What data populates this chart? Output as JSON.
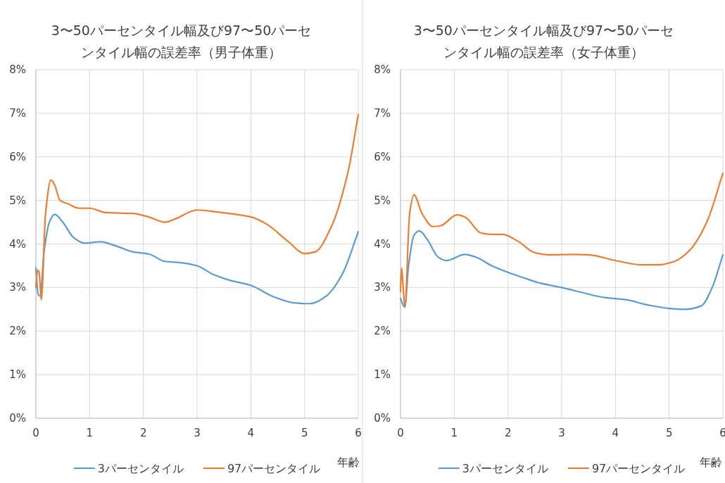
{
  "chart_data": [
    {
      "type": "line",
      "title": "3〜50パーセンタイル幅及び97〜50パーセンタイル幅の誤差率（男子体重）",
      "xlabel": "年齢",
      "xlim": [
        0,
        6
      ],
      "xticks": [
        0,
        1,
        2,
        3,
        4,
        5,
        6
      ],
      "ylim": [
        0,
        8
      ],
      "yticks": [
        {
          "value": 0,
          "label": "0%"
        },
        {
          "value": 1,
          "label": "1%"
        },
        {
          "value": 2,
          "label": "2%"
        },
        {
          "value": 3,
          "label": "3%"
        },
        {
          "value": 4,
          "label": "4%"
        },
        {
          "value": 5,
          "label": "5%"
        },
        {
          "value": 6,
          "label": "6%"
        },
        {
          "value": 7,
          "label": "7%"
        },
        {
          "value": 8,
          "label": "8%"
        }
      ],
      "grid": true,
      "legend": "bottom",
      "marker": "none",
      "line_style": "solid",
      "series": [
        {
          "name": "3パーセンタイル",
          "color": "#5b9bd5",
          "x": [
            0,
            0.04,
            0.08,
            0.15,
            0.25,
            0.35,
            0.5,
            0.7,
            0.9,
            1.2,
            1.5,
            1.8,
            2.1,
            2.4,
            2.7,
            3.0,
            3.3,
            3.6,
            4.0,
            4.4,
            4.8,
            5.1,
            5.4,
            5.7,
            6.0
          ],
          "values": [
            3.45,
            2.85,
            2.8,
            3.8,
            4.5,
            4.68,
            4.5,
            4.15,
            4.02,
            4.05,
            3.95,
            3.82,
            3.77,
            3.6,
            3.57,
            3.5,
            3.3,
            3.17,
            3.05,
            2.8,
            2.65,
            2.63,
            2.8,
            3.3,
            4.28
          ]
        },
        {
          "name": "97パーセンタイル",
          "color": "#ed7d31",
          "x": [
            0,
            0.03,
            0.06,
            0.1,
            0.18,
            0.28,
            0.35,
            0.45,
            0.6,
            0.8,
            1.0,
            1.3,
            1.8,
            2.1,
            2.4,
            2.6,
            3.0,
            3.4,
            4.0,
            4.3,
            4.7,
            5.0,
            5.2,
            5.5,
            5.8,
            6.0
          ],
          "values": [
            3.0,
            3.4,
            3.35,
            2.72,
            4.7,
            5.47,
            5.35,
            5.0,
            4.92,
            4.82,
            4.82,
            4.72,
            4.7,
            4.62,
            4.5,
            4.58,
            4.78,
            4.73,
            4.62,
            4.45,
            4.05,
            3.78,
            3.82,
            4.4,
            5.6,
            6.97
          ]
        }
      ]
    },
    {
      "type": "line",
      "title": "3〜50パーセンタイル幅及び97〜50パーセンタイル幅の誤差率（女子体重）",
      "xlabel": "年齢",
      "xlim": [
        0,
        6
      ],
      "xticks": [
        0,
        1,
        2,
        3,
        4,
        5,
        6
      ],
      "ylim": [
        0,
        8
      ],
      "yticks": [
        {
          "value": 0,
          "label": "0%"
        },
        {
          "value": 1,
          "label": "1%"
        },
        {
          "value": 2,
          "label": "2%"
        },
        {
          "value": 3,
          "label": "3%"
        },
        {
          "value": 4,
          "label": "4%"
        },
        {
          "value": 5,
          "label": "5%"
        },
        {
          "value": 6,
          "label": "6%"
        },
        {
          "value": 7,
          "label": "7%"
        },
        {
          "value": 8,
          "label": "8%"
        }
      ],
      "grid": true,
      "legend": "bottom",
      "marker": "none",
      "line_style": "solid",
      "series": [
        {
          "name": "3パーセンタイル",
          "color": "#5b9bd5",
          "x": [
            0,
            0.03,
            0.08,
            0.15,
            0.25,
            0.35,
            0.5,
            0.7,
            0.85,
            1.2,
            1.4,
            1.7,
            2.0,
            2.3,
            2.6,
            3.0,
            3.4,
            3.8,
            4.2,
            4.6,
            5.0,
            5.3,
            5.6,
            5.8,
            6.0
          ],
          "values": [
            2.75,
            2.65,
            2.55,
            3.5,
            4.2,
            4.3,
            4.1,
            3.7,
            3.62,
            3.76,
            3.7,
            3.5,
            3.35,
            3.22,
            3.1,
            3.0,
            2.88,
            2.77,
            2.72,
            2.6,
            2.52,
            2.5,
            2.58,
            3.0,
            3.75
          ]
        },
        {
          "name": "97パーセンタイル",
          "color": "#ed7d31",
          "x": [
            0,
            0.02,
            0.05,
            0.08,
            0.17,
            0.25,
            0.4,
            0.6,
            0.75,
            1.05,
            1.2,
            1.5,
            1.7,
            1.9,
            2.2,
            2.5,
            2.8,
            3.2,
            3.5,
            4.0,
            4.5,
            4.8,
            5.1,
            5.4,
            5.7,
            6.0
          ],
          "values": [
            2.9,
            3.45,
            3.0,
            2.55,
            4.7,
            5.13,
            4.7,
            4.4,
            4.42,
            4.67,
            4.62,
            4.25,
            4.22,
            4.22,
            4.05,
            3.8,
            3.75,
            3.76,
            3.75,
            3.62,
            3.52,
            3.52,
            3.6,
            3.88,
            4.5,
            5.62
          ]
        }
      ]
    }
  ]
}
